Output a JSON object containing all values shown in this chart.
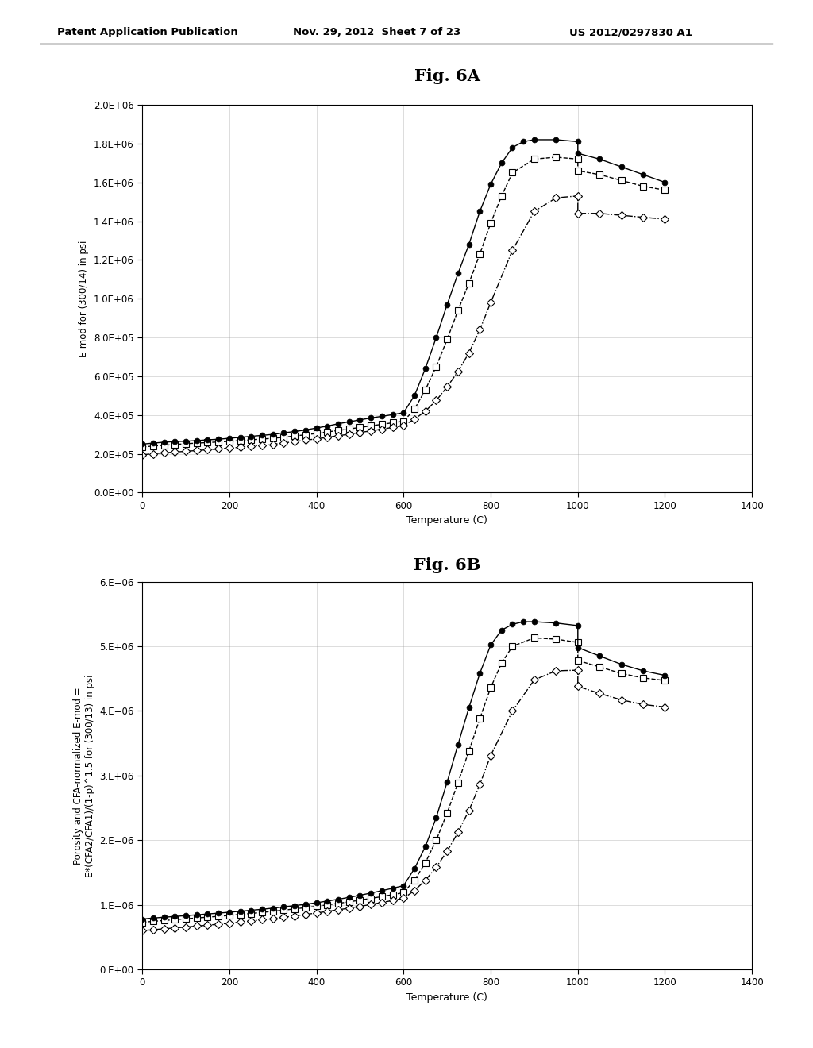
{
  "header_left": "Patent Application Publication",
  "header_mid": "Nov. 29, 2012  Sheet 7 of 23",
  "header_right": "US 2012/0297830 A1",
  "fig6a_title": "Fig. 6A",
  "fig6b_title": "Fig. 6B",
  "fig6a_ylabel": "E-mod for (300/14) in psi",
  "fig6b_ylabel": "Porosity and CFA-normalized E-mod =\nE*(CFA2/CFA1)/(1-p)^1.5 for (300/13) in psi",
  "xlabel": "Temperature (C)",
  "background_color": "#ffffff",
  "fig6a": {
    "heating_circle": {
      "x": [
        0,
        25,
        50,
        75,
        100,
        125,
        150,
        175,
        200,
        225,
        250,
        275,
        300,
        325,
        350,
        375,
        400,
        425,
        450,
        475,
        500,
        525,
        550,
        575,
        600,
        625,
        650,
        675,
        700,
        725,
        750,
        775,
        800,
        825,
        850,
        875,
        900,
        950,
        1000
      ],
      "y": [
        250000,
        255000,
        260000,
        263000,
        265000,
        268000,
        272000,
        275000,
        280000,
        285000,
        290000,
        295000,
        300000,
        308000,
        315000,
        323000,
        333000,
        343000,
        355000,
        365000,
        375000,
        385000,
        393000,
        402000,
        412000,
        500000,
        640000,
        800000,
        970000,
        1130000,
        1280000,
        1450000,
        1590000,
        1700000,
        1780000,
        1810000,
        1820000,
        1820000,
        1810000
      ]
    },
    "cooling_circle": {
      "x": [
        1000,
        1050,
        1100,
        1150,
        1200
      ],
      "y": [
        1750000,
        1720000,
        1680000,
        1640000,
        1600000
      ]
    },
    "heating_square": {
      "x": [
        0,
        25,
        50,
        75,
        100,
        125,
        150,
        175,
        200,
        225,
        250,
        275,
        300,
        325,
        350,
        375,
        400,
        425,
        450,
        475,
        500,
        525,
        550,
        575,
        600,
        625,
        650,
        675,
        700,
        725,
        750,
        775,
        800,
        825,
        850,
        900,
        950,
        1000
      ],
      "y": [
        235000,
        240000,
        244000,
        248000,
        252000,
        255000,
        258000,
        261000,
        264000,
        268000,
        272000,
        276000,
        280000,
        285000,
        292000,
        298000,
        305000,
        313000,
        320000,
        328000,
        336000,
        344000,
        352000,
        360000,
        368000,
        430000,
        530000,
        650000,
        790000,
        940000,
        1080000,
        1230000,
        1390000,
        1530000,
        1650000,
        1720000,
        1730000,
        1720000
      ]
    },
    "cooling_square": {
      "x": [
        1000,
        1050,
        1100,
        1150,
        1200
      ],
      "y": [
        1660000,
        1640000,
        1610000,
        1580000,
        1560000
      ]
    },
    "heating_diamond": {
      "x": [
        0,
        25,
        50,
        75,
        100,
        125,
        150,
        175,
        200,
        225,
        250,
        275,
        300,
        325,
        350,
        375,
        400,
        425,
        450,
        475,
        500,
        525,
        550,
        575,
        600,
        625,
        650,
        675,
        700,
        725,
        750,
        775,
        800,
        850,
        900,
        950,
        1000
      ],
      "y": [
        195000,
        200000,
        205000,
        209000,
        213000,
        217000,
        221000,
        225000,
        229000,
        234000,
        239000,
        244000,
        249000,
        256000,
        263000,
        270000,
        277000,
        285000,
        293000,
        301000,
        310000,
        318000,
        327000,
        336000,
        346000,
        378000,
        420000,
        475000,
        545000,
        625000,
        720000,
        840000,
        980000,
        1250000,
        1450000,
        1520000,
        1530000
      ]
    },
    "cooling_diamond": {
      "x": [
        1000,
        1050,
        1100,
        1150,
        1200
      ],
      "y": [
        1440000,
        1440000,
        1430000,
        1420000,
        1410000
      ]
    }
  },
  "fig6b": {
    "heating_circle": {
      "x": [
        0,
        25,
        50,
        75,
        100,
        125,
        150,
        175,
        200,
        225,
        250,
        275,
        300,
        325,
        350,
        375,
        400,
        425,
        450,
        475,
        500,
        525,
        550,
        575,
        600,
        625,
        650,
        675,
        700,
        725,
        750,
        775,
        800,
        825,
        850,
        875,
        900,
        950,
        1000
      ],
      "y": [
        780000,
        795000,
        808000,
        820000,
        833000,
        845000,
        858000,
        871000,
        885000,
        900000,
        915000,
        930000,
        948000,
        967000,
        987000,
        1008000,
        1032000,
        1058000,
        1086000,
        1115000,
        1148000,
        1182000,
        1218000,
        1256000,
        1296000,
        1560000,
        1900000,
        2350000,
        2900000,
        3480000,
        4050000,
        4580000,
        5020000,
        5250000,
        5340000,
        5380000,
        5380000,
        5360000,
        5320000
      ]
    },
    "cooling_circle": {
      "x": [
        1000,
        1050,
        1100,
        1150,
        1200
      ],
      "y": [
        4980000,
        4850000,
        4720000,
        4620000,
        4550000
      ]
    },
    "heating_square": {
      "x": [
        0,
        25,
        50,
        75,
        100,
        125,
        150,
        175,
        200,
        225,
        250,
        275,
        300,
        325,
        350,
        375,
        400,
        425,
        450,
        475,
        500,
        525,
        550,
        575,
        600,
        625,
        650,
        675,
        700,
        725,
        750,
        775,
        800,
        825,
        850,
        900,
        950,
        1000
      ],
      "y": [
        730000,
        744000,
        757000,
        770000,
        783000,
        796000,
        809000,
        822000,
        836000,
        851000,
        866000,
        882000,
        899000,
        917000,
        936000,
        956000,
        977000,
        999000,
        1022000,
        1046000,
        1072000,
        1099000,
        1127000,
        1157000,
        1188000,
        1380000,
        1650000,
        2000000,
        2420000,
        2890000,
        3380000,
        3880000,
        4360000,
        4740000,
        5000000,
        5130000,
        5110000,
        5060000
      ]
    },
    "cooling_square": {
      "x": [
        1000,
        1050,
        1100,
        1150,
        1200
      ],
      "y": [
        4780000,
        4680000,
        4580000,
        4510000,
        4470000
      ]
    },
    "heating_diamond": {
      "x": [
        0,
        25,
        50,
        75,
        100,
        125,
        150,
        175,
        200,
        225,
        250,
        275,
        300,
        325,
        350,
        375,
        400,
        425,
        450,
        475,
        500,
        525,
        550,
        575,
        600,
        625,
        650,
        675,
        700,
        725,
        750,
        775,
        800,
        850,
        900,
        950,
        1000
      ],
      "y": [
        600000,
        614000,
        628000,
        642000,
        656000,
        670000,
        685000,
        700000,
        716000,
        733000,
        750000,
        768000,
        787000,
        807000,
        828000,
        850000,
        873000,
        897000,
        922000,
        948000,
        976000,
        1005000,
        1035000,
        1067000,
        1100000,
        1220000,
        1380000,
        1580000,
        1830000,
        2120000,
        2460000,
        2860000,
        3310000,
        4000000,
        4480000,
        4620000,
        4630000
      ]
    },
    "cooling_diamond": {
      "x": [
        1000,
        1050,
        1100,
        1150,
        1200
      ],
      "y": [
        4380000,
        4270000,
        4170000,
        4100000,
        4060000
      ]
    }
  }
}
